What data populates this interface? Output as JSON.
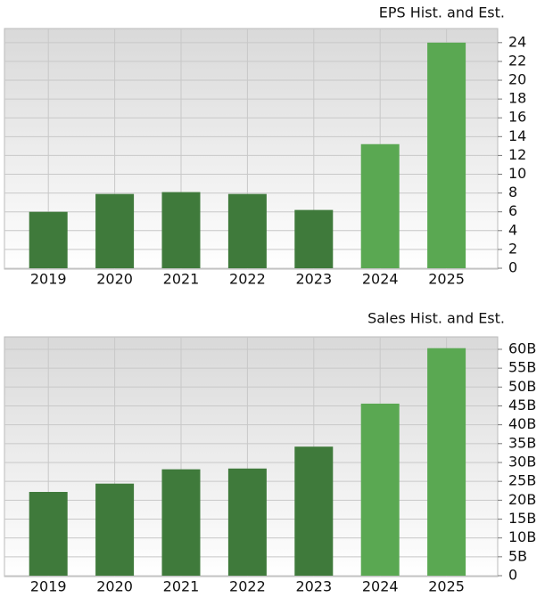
{
  "chart_data": [
    {
      "type": "bar",
      "title": "EPS Hist. and Est.",
      "categories": [
        "2019",
        "2020",
        "2021",
        "2022",
        "2023",
        "2024",
        "2025"
      ],
      "values": [
        6.0,
        7.9,
        8.1,
        7.9,
        6.2,
        13.2,
        24.0
      ],
      "colors": [
        "#3f7a3b",
        "#3f7a3b",
        "#3f7a3b",
        "#3f7a3b",
        "#3f7a3b",
        "#5aa852",
        "#5aa852"
      ],
      "ylim": [
        0,
        25.5
      ],
      "yticks": [
        0,
        2,
        4,
        6,
        8,
        10,
        12,
        14,
        16,
        18,
        20,
        22,
        24
      ],
      "grid": true
    },
    {
      "type": "bar",
      "title": "Sales Hist. and Est.",
      "categories": [
        "2019",
        "2020",
        "2021",
        "2022",
        "2023",
        "2024",
        "2025"
      ],
      "values": [
        22.2,
        24.4,
        28.2,
        28.4,
        34.2,
        45.6,
        60.3
      ],
      "colors": [
        "#3f7a3b",
        "#3f7a3b",
        "#3f7a3b",
        "#3f7a3b",
        "#3f7a3b",
        "#5aa852",
        "#5aa852"
      ],
      "ylim": [
        0,
        63.3
      ],
      "yticks": [
        0,
        {
          "value": 5,
          "label": "5B"
        },
        {
          "value": 10,
          "label": "10B"
        },
        {
          "value": 15,
          "label": "15B"
        },
        {
          "value": 20,
          "label": "20B"
        },
        {
          "value": 25,
          "label": "25B"
        },
        {
          "value": 30,
          "label": "30B"
        },
        {
          "value": 35,
          "label": "35B"
        },
        {
          "value": 40,
          "label": "40B"
        },
        {
          "value": 45,
          "label": "45B"
        },
        {
          "value": 50,
          "label": "50B"
        },
        {
          "value": 55,
          "label": "55B"
        },
        {
          "value": 60,
          "label": "60B"
        }
      ],
      "grid": true
    }
  ]
}
